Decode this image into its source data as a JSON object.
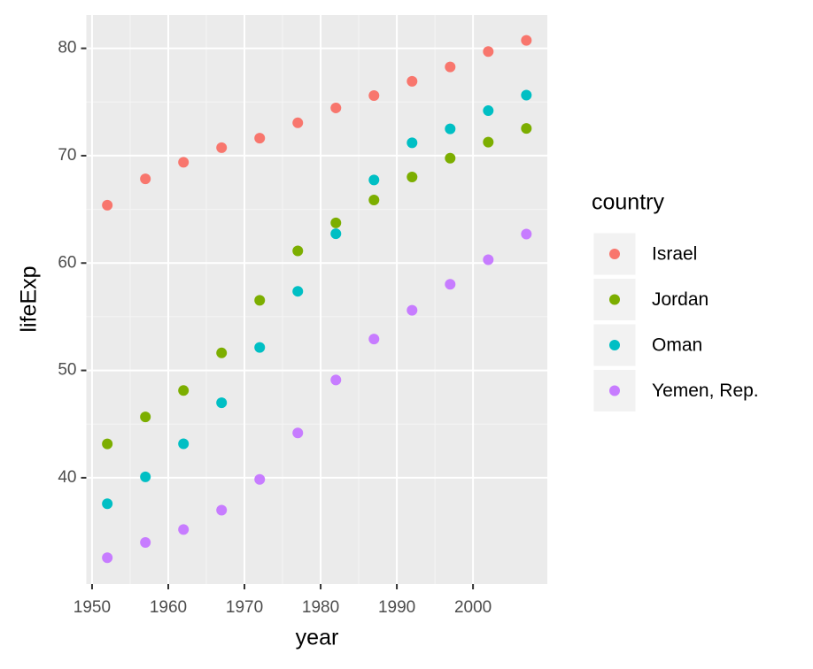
{
  "chart_data": {
    "type": "scatter",
    "x_label": "year",
    "y_label": "lifeExp",
    "x": [
      1952,
      1957,
      1962,
      1967,
      1972,
      1977,
      1982,
      1987,
      1992,
      1997,
      2002,
      2007
    ],
    "series": [
      {
        "name": "Israel",
        "color": "#F8766D",
        "values": [
          65.39,
          67.84,
          69.39,
          70.75,
          71.63,
          73.06,
          74.45,
          75.6,
          76.93,
          78.27,
          79.7,
          80.745
        ]
      },
      {
        "name": "Jordan",
        "color": "#7CAE00",
        "values": [
          43.158,
          45.669,
          48.126,
          51.629,
          56.528,
          61.134,
          63.739,
          65.869,
          68.015,
          69.772,
          71.263,
          72.535
        ]
      },
      {
        "name": "Oman",
        "color": "#00BFC4",
        "values": [
          37.578,
          40.08,
          43.165,
          46.988,
          52.143,
          57.367,
          62.728,
          67.734,
          71.197,
          72.499,
          74.193,
          75.64
        ]
      },
      {
        "name": "Yemen, Rep.",
        "color": "#C77CFF",
        "values": [
          32.548,
          33.97,
          35.18,
          36.984,
          39.848,
          44.175,
          49.113,
          52.922,
          55.599,
          58.02,
          60.308,
          62.698
        ]
      }
    ],
    "legend_title": "country",
    "legend_position": "right",
    "xlim": [
      1949.25,
      2009.75
    ],
    "xticks": [
      1950,
      1960,
      1970,
      1980,
      1990,
      2000
    ],
    "ylim": [
      30.1,
      83.1
    ],
    "yticks": [
      40,
      50,
      60,
      70,
      80
    ],
    "grid": true
  }
}
